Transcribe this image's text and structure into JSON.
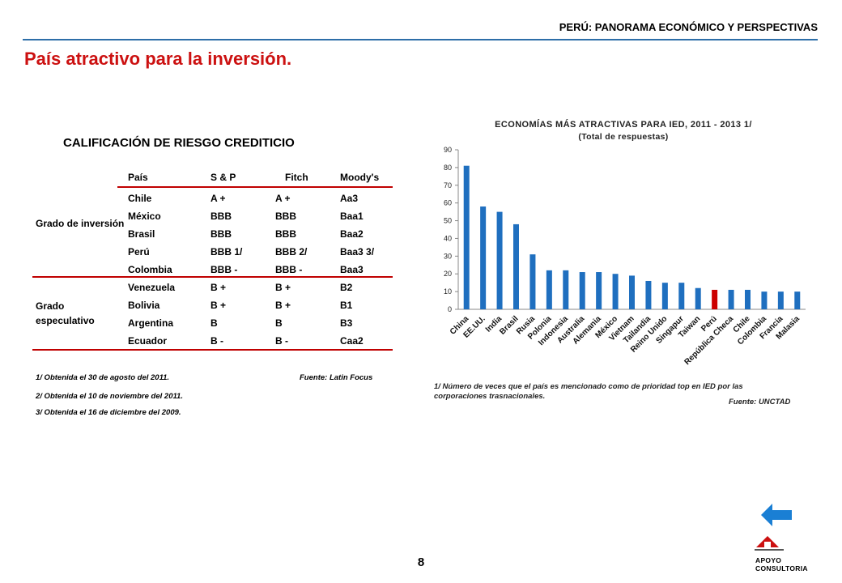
{
  "header": {
    "section": "PERÚ: PANORAMA ECONÓMICO Y PERSPECTIVAS",
    "title": "País atractivo para la inversión."
  },
  "table": {
    "title": "CALIFICACIÓN DE RIESGO CREDITICIO",
    "columns": [
      "País",
      "S & P",
      "Fitch",
      "Moody's"
    ],
    "groups": [
      {
        "label": "Grado de inversión",
        "rows": [
          {
            "country": "Chile",
            "sp": "A +",
            "fitch": "A +",
            "moodys": "Aa3"
          },
          {
            "country": "México",
            "sp": "BBB",
            "fitch": "BBB",
            "moodys": "Baa1"
          },
          {
            "country": "Brasil",
            "sp": "BBB",
            "fitch": "BBB",
            "moodys": "Baa2"
          },
          {
            "country": "Perú",
            "sp": "BBB 1/",
            "fitch": "BBB  2/",
            "moodys": "Baa3 3/"
          },
          {
            "country": "Colombia",
            "sp": "BBB -",
            "fitch": "BBB -",
            "moodys": "Baa3"
          }
        ]
      },
      {
        "label": "Grado especulativo",
        "rows": [
          {
            "country": "Venezuela",
            "sp": "B +",
            "fitch": "B +",
            "moodys": "B2"
          },
          {
            "country": "Bolivia",
            "sp": "B +",
            "fitch": "B +",
            "moodys": "B1"
          },
          {
            "country": "Argentina",
            "sp": "B",
            "fitch": "B",
            "moodys": "B3"
          },
          {
            "country": "Ecuador",
            "sp": "B -",
            "fitch": "B -",
            "moodys": "Caa2"
          }
        ]
      }
    ],
    "notes": [
      "1/ Obtenida  el 30 de agosto del 2011.",
      "2/ Obtenida  el 10 de noviembre del 2011.",
      "3/ Obtenida  el 16 de diciembre del 2009."
    ],
    "source": "Fuente: Latin Focus"
  },
  "chart_data": {
    "type": "bar",
    "title": "ECONOMÍAS MÁS ATRACTIVAS PARA IED, 2011 - 2013 1/",
    "subtitle": "(Total de respuestas)",
    "categories": [
      "China",
      "EE.UU.",
      "India",
      "Brasil",
      "Rusia",
      "Polonia",
      "Indonesia",
      "Australia",
      "Alemania",
      "México",
      "Vietnam",
      "Tailandia",
      "Reino Unido",
      "Singapur",
      "Taiwan",
      "Perú",
      "República Checa",
      "Chile",
      "Colombia",
      "Francia",
      "Malasia"
    ],
    "values": [
      81,
      58,
      55,
      48,
      31,
      22,
      22,
      21,
      21,
      20,
      19,
      16,
      15,
      15,
      12,
      11,
      11,
      11,
      10,
      10,
      10
    ],
    "highlight": "Perú",
    "colors": {
      "bar": "#1f6fbf",
      "highlight": "#cc0000"
    },
    "ylim": [
      0,
      90
    ],
    "yticks": [
      0,
      10,
      20,
      30,
      40,
      50,
      60,
      70,
      80,
      90
    ],
    "note": "1/ Número de veces que el país es mencionado como de prioridad top en IED por las corporaciones trasnacionales.",
    "source": "Fuente: UNCTAD"
  },
  "footer": {
    "page": "8",
    "logo_line1": "APOYO",
    "logo_line2": "CONSULTORIA",
    "back_icon": "back-arrow-icon"
  }
}
